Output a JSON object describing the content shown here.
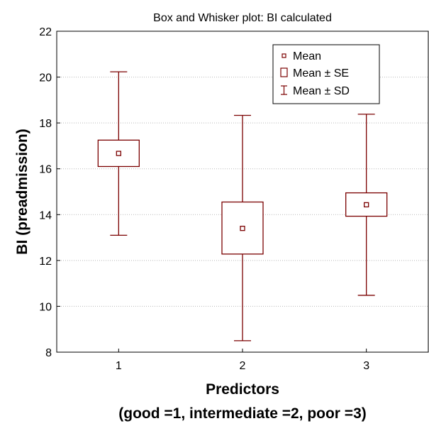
{
  "chart_data": {
    "type": "box",
    "title": "Box and Whisker plot: BI calculated",
    "ylabel": "BI (preadmission)",
    "xlabel_line1": "Predictors",
    "xlabel_line2": "(good =1, intermediate =2, poor =3)",
    "categories": [
      "1",
      "2",
      "3"
    ],
    "ylim": [
      8,
      22
    ],
    "yticks": [
      8,
      10,
      12,
      14,
      16,
      18,
      20,
      22
    ],
    "grid": true,
    "legend_position": "top-right",
    "legend": [
      "Mean",
      "Mean ± SE",
      "Mean ± SD"
    ],
    "color": "#7b0000",
    "groups": [
      {
        "category": "1",
        "mean": 16.67,
        "se_low": 16.1,
        "se_high": 17.25,
        "sd_low": 13.1,
        "sd_high": 20.23
      },
      {
        "category": "2",
        "mean": 13.4,
        "se_low": 12.28,
        "se_high": 14.55,
        "sd_low": 8.5,
        "sd_high": 18.33
      },
      {
        "category": "3",
        "mean": 14.43,
        "se_low": 13.93,
        "se_high": 14.95,
        "sd_low": 10.48,
        "sd_high": 18.38
      }
    ]
  }
}
